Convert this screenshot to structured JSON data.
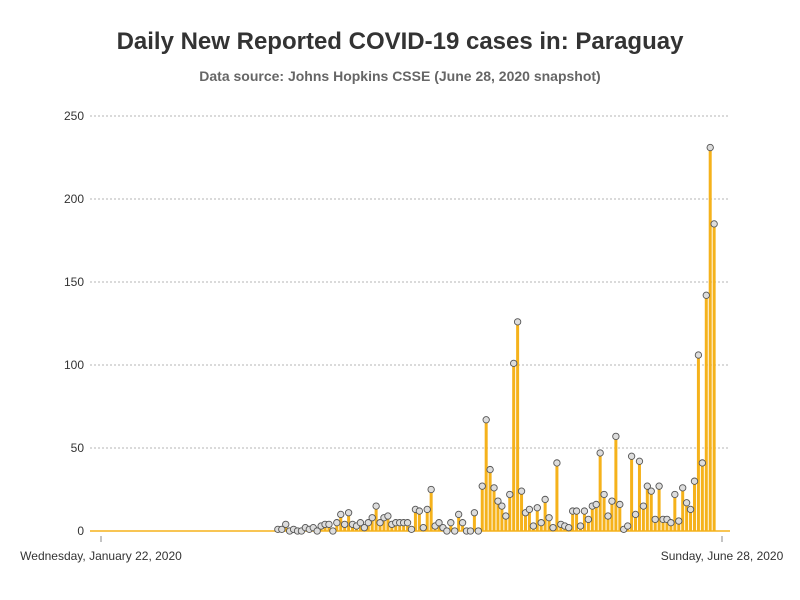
{
  "chart_data": {
    "type": "bar",
    "title": "Daily New Reported COVID-19 cases in: Paraguay",
    "subtitle": "Data source: Johns Hopkins CSSE (June 28, 2020 snapshot)",
    "x_start_label": "Wednesday, January 22, 2020",
    "x_end_label": "Sunday, June 28, 2020",
    "x_start": "2020-01-22",
    "x_end": "2020-06-28",
    "y_ticks": [
      0,
      50,
      100,
      150,
      200,
      250
    ],
    "ylim": [
      0,
      250
    ],
    "grid": true,
    "bar_color": "#f5b21b",
    "marker_fill": "#dddddd",
    "marker_stroke": "#555555",
    "first_reported_date": "2020-03-07",
    "values": [
      1,
      1,
      4,
      0,
      1,
      0,
      0,
      2,
      1,
      2,
      0,
      3,
      4,
      4,
      0,
      5,
      10,
      4,
      11,
      4,
      3,
      5,
      2,
      5,
      8,
      15,
      5,
      8,
      9,
      4,
      5,
      5,
      5,
      5,
      1,
      13,
      12,
      2,
      13,
      25,
      3,
      5,
      2,
      0,
      5,
      0,
      10,
      5,
      0,
      0,
      11,
      0,
      27,
      67,
      37,
      26,
      18,
      15,
      9,
      22,
      101,
      126,
      24,
      11,
      13,
      3,
      14,
      5,
      19,
      8,
      2,
      41,
      4,
      3,
      2,
      12,
      12,
      3,
      12,
      7,
      15,
      16,
      47,
      22,
      9,
      18,
      57,
      16,
      1,
      3,
      45,
      10,
      42,
      15,
      27,
      24,
      7,
      27,
      7,
      7,
      5,
      22,
      6,
      26,
      17,
      13,
      30,
      106,
      41,
      142,
      231,
      185
    ]
  }
}
